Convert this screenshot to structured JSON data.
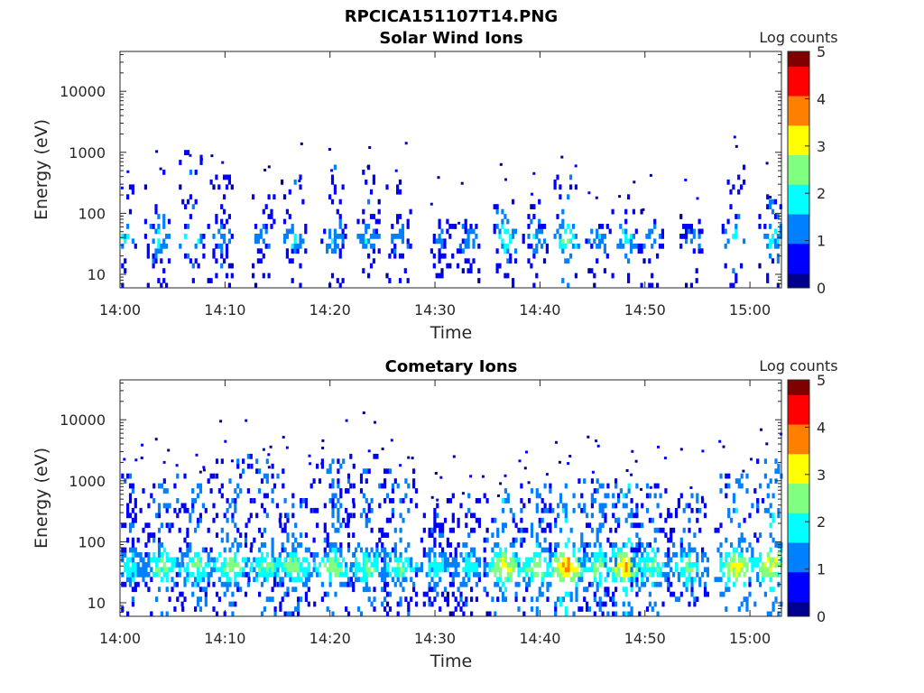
{
  "figure": {
    "title": "RPCICA151107T14.PNG"
  },
  "colormap": [
    "#00008f",
    "#0000ff",
    "#0080ff",
    "#00ffff",
    "#80ff80",
    "#ffff00",
    "#ff8000",
    "#ff0000",
    "#800000"
  ],
  "chart_data": [
    {
      "type": "heatmap",
      "title": "Solar Wind Ions",
      "xlabel": "Time",
      "ylabel": "Energy (eV)",
      "x_ticks": [
        "14:00",
        "14:10",
        "14:20",
        "14:30",
        "14:40",
        "14:50",
        "15:00"
      ],
      "x_tick_minutes": [
        0,
        10,
        20,
        30,
        40,
        50,
        60
      ],
      "xlim_minutes": [
        0,
        63
      ],
      "y_scale": "log",
      "y_ticks": [
        "10",
        "100",
        "1000",
        "10000"
      ],
      "y_tick_values": [
        10,
        100,
        1000,
        10000
      ],
      "ylim": [
        6,
        45000
      ],
      "colorbar": {
        "label": "Log counts",
        "ticks": [
          "0",
          "1",
          "2",
          "3",
          "4",
          "5"
        ],
        "range": [
          0,
          5
        ]
      },
      "bursts": [
        {
          "t": 0.3,
          "log_counts": 1.3,
          "e_high": 200
        },
        {
          "t": 3.5,
          "log_counts": 1.5,
          "e_high": 350
        },
        {
          "t": 6.8,
          "log_counts": 1.6,
          "e_high": 700
        },
        {
          "t": 9.5,
          "log_counts": 1.2,
          "e_high": 300
        },
        {
          "t": 13.5,
          "log_counts": 1.2,
          "e_high": 150
        },
        {
          "t": 16.5,
          "log_counts": 1.4,
          "e_high": 300
        },
        {
          "t": 20.3,
          "log_counts": 1.3,
          "e_high": 400
        },
        {
          "t": 23.5,
          "log_counts": 1.3,
          "e_high": 400
        },
        {
          "t": 26.5,
          "log_counts": 1.1,
          "e_high": 300
        },
        {
          "t": 30.5,
          "log_counts": 0.9,
          "e_high": 60
        },
        {
          "t": 33.0,
          "log_counts": 1.1,
          "e_high": 60
        },
        {
          "t": 36.5,
          "log_counts": 1.7,
          "e_high": 120
        },
        {
          "t": 39.5,
          "log_counts": 1.2,
          "e_high": 150
        },
        {
          "t": 42.5,
          "log_counts": 1.9,
          "e_high": 300
        },
        {
          "t": 45.5,
          "log_counts": 1.2,
          "e_high": 150
        },
        {
          "t": 48.0,
          "log_counts": 1.5,
          "e_high": 150
        },
        {
          "t": 50.5,
          "log_counts": 1.1,
          "e_high": 80
        },
        {
          "t": 54.5,
          "log_counts": 1.1,
          "e_high": 80
        },
        {
          "t": 58.5,
          "log_counts": 1.4,
          "e_high": 400
        },
        {
          "t": 62.0,
          "log_counts": 1.5,
          "e_high": 150
        }
      ]
    },
    {
      "type": "heatmap",
      "title": "Cometary Ions",
      "xlabel": "Time",
      "ylabel": "Energy (eV)",
      "x_ticks": [
        "14:00",
        "14:10",
        "14:20",
        "14:30",
        "14:40",
        "14:50",
        "15:00"
      ],
      "x_tick_minutes": [
        0,
        10,
        20,
        30,
        40,
        50,
        60
      ],
      "xlim_minutes": [
        0,
        63
      ],
      "y_scale": "log",
      "y_ticks": [
        "10",
        "100",
        "1000",
        "10000"
      ],
      "y_tick_values": [
        10,
        100,
        1000,
        10000
      ],
      "ylim": [
        6,
        45000
      ],
      "colorbar": {
        "label": "Log counts",
        "ticks": [
          "0",
          "1",
          "2",
          "3",
          "4",
          "5"
        ],
        "range": [
          0,
          5
        ]
      },
      "bursts": [
        {
          "t": 1.0,
          "log_counts": 1.6,
          "e_high": 900
        },
        {
          "t": 4.0,
          "log_counts": 2.0,
          "e_high": 1000
        },
        {
          "t": 7.2,
          "log_counts": 2.0,
          "e_high": 900
        },
        {
          "t": 10.5,
          "log_counts": 2.1,
          "e_high": 2000
        },
        {
          "t": 13.8,
          "log_counts": 2.0,
          "e_high": 1500
        },
        {
          "t": 16.5,
          "log_counts": 2.2,
          "e_high": 800
        },
        {
          "t": 20.3,
          "log_counts": 2.1,
          "e_high": 1500
        },
        {
          "t": 23.5,
          "log_counts": 2.0,
          "e_high": 2000
        },
        {
          "t": 26.5,
          "log_counts": 1.9,
          "e_high": 1200
        },
        {
          "t": 30.0,
          "log_counts": 1.6,
          "e_high": 300
        },
        {
          "t": 33.0,
          "log_counts": 1.6,
          "e_high": 400
        },
        {
          "t": 36.5,
          "log_counts": 2.6,
          "e_high": 500
        },
        {
          "t": 39.5,
          "log_counts": 2.2,
          "e_high": 600
        },
        {
          "t": 42.5,
          "log_counts": 3.0,
          "e_high": 700
        },
        {
          "t": 45.5,
          "log_counts": 2.0,
          "e_high": 800
        },
        {
          "t": 48.0,
          "log_counts": 2.7,
          "e_high": 600
        },
        {
          "t": 50.5,
          "log_counts": 2.0,
          "e_high": 600
        },
        {
          "t": 54.0,
          "log_counts": 2.0,
          "e_high": 500
        },
        {
          "t": 58.5,
          "log_counts": 2.5,
          "e_high": 1000
        },
        {
          "t": 62.0,
          "log_counts": 2.6,
          "e_high": 1500
        }
      ]
    }
  ]
}
